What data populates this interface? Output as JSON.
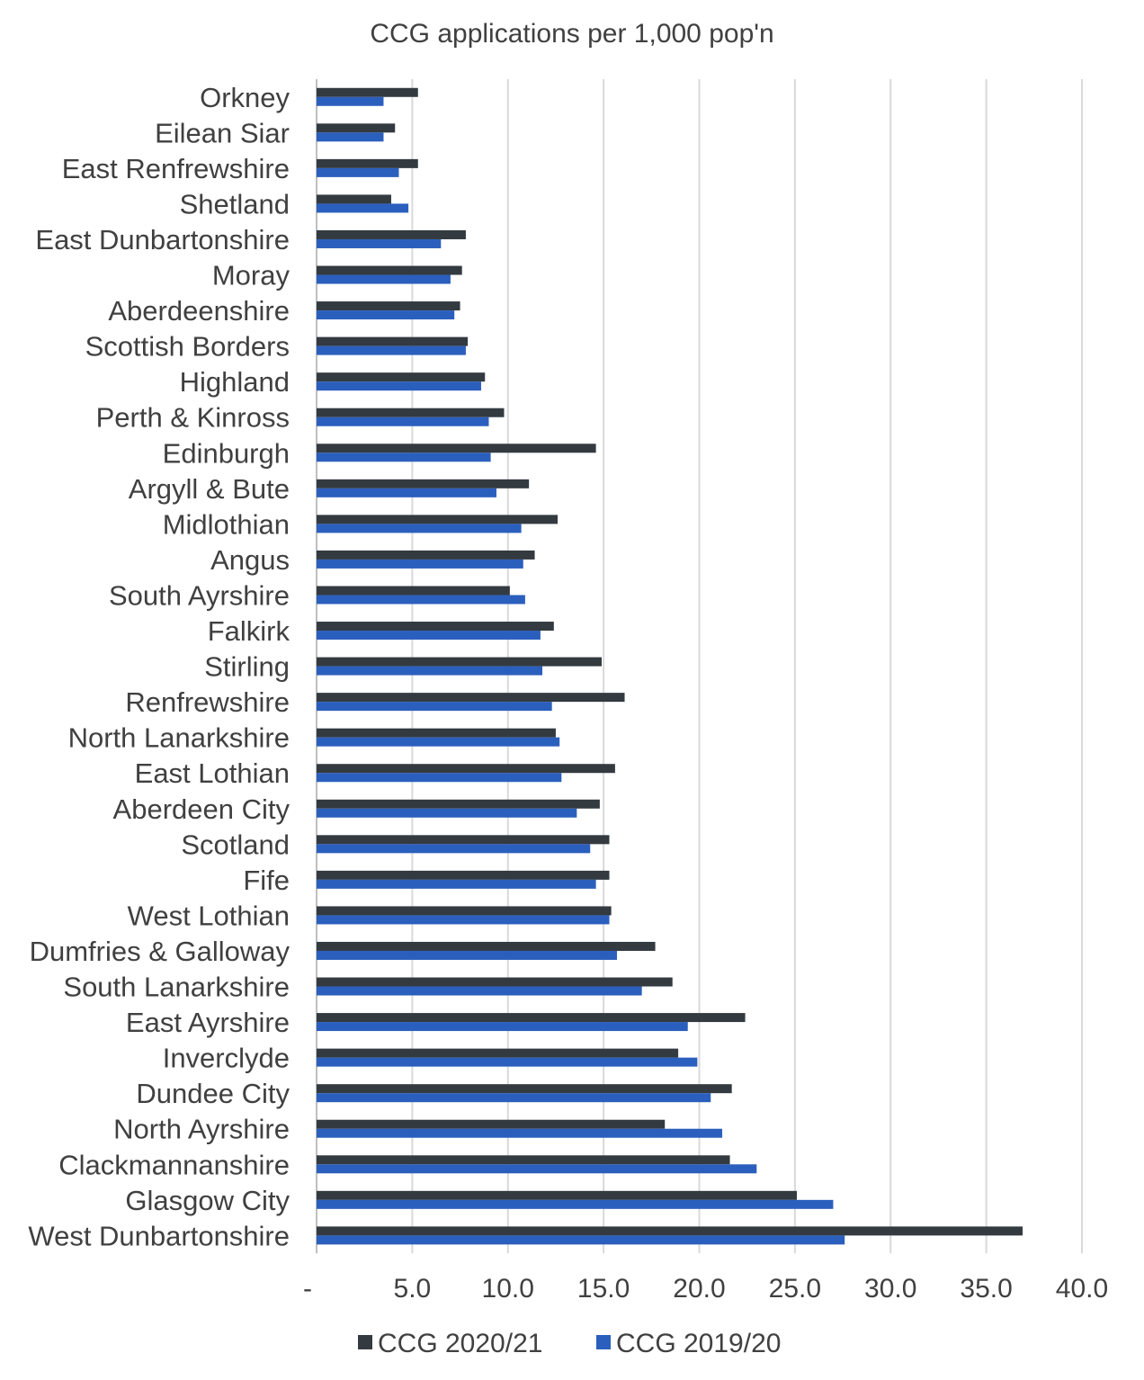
{
  "chart_data": {
    "type": "bar",
    "orientation": "horizontal",
    "title": "CCG applications per 1,000 pop'n",
    "xlabel": "",
    "ylabel": "",
    "xlim": [
      0,
      40
    ],
    "x_ticks": [
      0,
      5,
      10,
      15,
      20,
      25,
      30,
      35,
      40
    ],
    "x_tick_labels": [
      "-",
      "5.0",
      "10.0",
      "15.0",
      "20.0",
      "25.0",
      "30.0",
      "35.0",
      "40.0"
    ],
    "grid": "vertical",
    "legend_position": "bottom",
    "categories": [
      "Orkney",
      "Eilean Siar",
      "East Renfrewshire",
      "Shetland",
      "East Dunbartonshire",
      "Moray",
      "Aberdeenshire",
      "Scottish Borders",
      "Highland",
      "Perth & Kinross",
      "Edinburgh",
      "Argyll & Bute",
      "Midlothian",
      "Angus",
      "South Ayrshire",
      "Falkirk",
      "Stirling",
      "Renfrewshire",
      "North Lanarkshire",
      "East Lothian",
      "Aberdeen City",
      "Scotland",
      "Fife",
      "West Lothian",
      "Dumfries & Galloway",
      "South Lanarkshire",
      "East Ayrshire",
      "Inverclyde",
      "Dundee City",
      "North Ayrshire",
      "Clackmannanshire",
      "Glasgow City",
      "West Dunbartonshire"
    ],
    "series": [
      {
        "name": "CCG 2020/21",
        "color": "#333a40",
        "values": [
          5.3,
          4.1,
          5.3,
          3.9,
          7.8,
          7.6,
          7.5,
          7.9,
          8.8,
          9.8,
          14.6,
          11.1,
          12.6,
          11.4,
          10.1,
          12.4,
          14.9,
          16.1,
          12.5,
          15.6,
          14.8,
          15.3,
          15.3,
          15.4,
          17.7,
          18.6,
          22.4,
          18.9,
          21.7,
          18.2,
          21.6,
          25.1,
          36.9
        ]
      },
      {
        "name": "CCG 2019/20",
        "color": "#2b5fbd",
        "values": [
          3.5,
          3.5,
          4.3,
          4.8,
          6.5,
          7.0,
          7.2,
          7.8,
          8.6,
          9.0,
          9.1,
          9.4,
          10.7,
          10.8,
          10.9,
          11.7,
          11.8,
          12.3,
          12.7,
          12.8,
          13.6,
          14.3,
          14.6,
          15.3,
          15.7,
          17.0,
          19.4,
          19.9,
          20.6,
          21.2,
          23.0,
          27.0,
          27.6
        ]
      }
    ]
  }
}
